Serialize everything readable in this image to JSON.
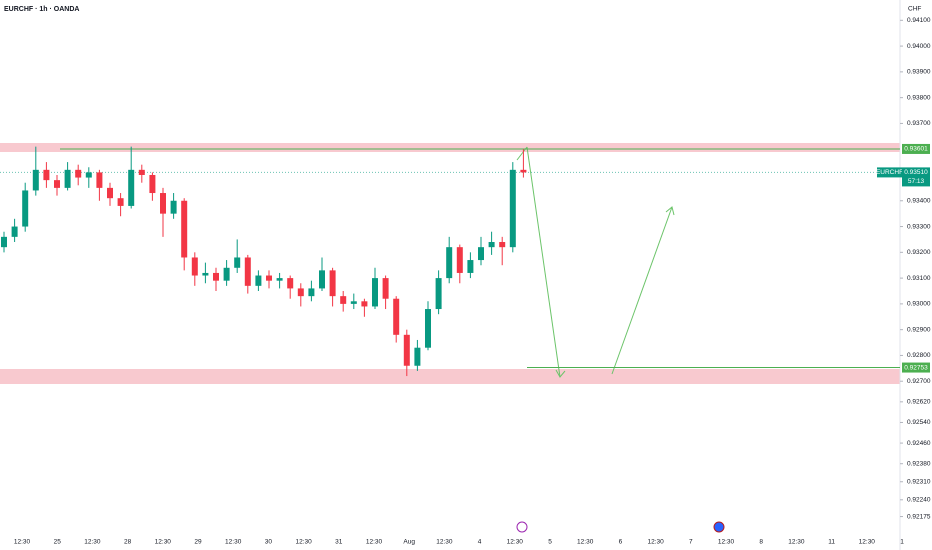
{
  "chart_data": {
    "type": "candlestick",
    "title": "EURCHF · 1h · OANDA",
    "currency": "CHF",
    "categories": [
      "12:30",
      "25",
      "12:30",
      "28",
      "12:30",
      "29",
      "12:30",
      "30",
      "12:30",
      "31",
      "12:30",
      "Aug",
      "12:30",
      "4",
      "12:30",
      "5",
      "12:30",
      "6",
      "12:30",
      "7",
      "12:30",
      "8",
      "12:30",
      "11",
      "12:30",
      "1"
    ],
    "candles": [
      [
        0.9322,
        0.9328,
        0.932,
        0.9326
      ],
      [
        0.9326,
        0.9333,
        0.9324,
        0.933
      ],
      [
        0.933,
        0.9347,
        0.9328,
        0.9344
      ],
      [
        0.9344,
        0.9361,
        0.9342,
        0.9352
      ],
      [
        0.9352,
        0.9355,
        0.9345,
        0.9348
      ],
      [
        0.9348,
        0.935,
        0.9342,
        0.9345
      ],
      [
        0.9345,
        0.9355,
        0.9344,
        0.9352
      ],
      [
        0.9352,
        0.9354,
        0.9346,
        0.9349
      ],
      [
        0.9349,
        0.9353,
        0.9345,
        0.9351
      ],
      [
        0.9351,
        0.9352,
        0.934,
        0.9345
      ],
      [
        0.9345,
        0.9347,
        0.9338,
        0.9341
      ],
      [
        0.9341,
        0.9343,
        0.9334,
        0.9338
      ],
      [
        0.9338,
        0.9361,
        0.9337,
        0.9352
      ],
      [
        0.9352,
        0.9354,
        0.9347,
        0.935
      ],
      [
        0.935,
        0.9351,
        0.934,
        0.9343
      ],
      [
        0.9343,
        0.9345,
        0.9326,
        0.9335
      ],
      [
        0.9335,
        0.9343,
        0.9333,
        0.934
      ],
      [
        0.934,
        0.9341,
        0.9313,
        0.9318
      ],
      [
        0.9318,
        0.932,
        0.9307,
        0.9311
      ],
      [
        0.9311,
        0.9316,
        0.9308,
        0.9312
      ],
      [
        0.9312,
        0.9314,
        0.9305,
        0.9309
      ],
      [
        0.9309,
        0.9317,
        0.9307,
        0.9314
      ],
      [
        0.9314,
        0.9325,
        0.9312,
        0.9318
      ],
      [
        0.9318,
        0.9319,
        0.9304,
        0.9307
      ],
      [
        0.9307,
        0.9313,
        0.9305,
        0.9311
      ],
      [
        0.9311,
        0.9313,
        0.9306,
        0.9309
      ],
      [
        0.9309,
        0.9312,
        0.9306,
        0.931
      ],
      [
        0.931,
        0.9311,
        0.9302,
        0.9306
      ],
      [
        0.9306,
        0.9308,
        0.9299,
        0.9303
      ],
      [
        0.9303,
        0.9309,
        0.9301,
        0.9306
      ],
      [
        0.9306,
        0.9318,
        0.9305,
        0.9313
      ],
      [
        0.9313,
        0.9314,
        0.9299,
        0.9303
      ],
      [
        0.9303,
        0.9305,
        0.9297,
        0.93
      ],
      [
        0.93,
        0.9304,
        0.9298,
        0.9301
      ],
      [
        0.9301,
        0.9302,
        0.9295,
        0.9299
      ],
      [
        0.9299,
        0.9314,
        0.9298,
        0.931
      ],
      [
        0.931,
        0.9311,
        0.9298,
        0.9302
      ],
      [
        0.9302,
        0.9303,
        0.9285,
        0.9288
      ],
      [
        0.9288,
        0.929,
        0.9272,
        0.9276
      ],
      [
        0.9276,
        0.9286,
        0.9274,
        0.9283
      ],
      [
        0.9283,
        0.9301,
        0.9282,
        0.9298
      ],
      [
        0.9298,
        0.9313,
        0.9296,
        0.931
      ],
      [
        0.931,
        0.9326,
        0.9308,
        0.9322
      ],
      [
        0.9322,
        0.9323,
        0.9308,
        0.9312
      ],
      [
        0.9312,
        0.932,
        0.931,
        0.9317
      ],
      [
        0.9317,
        0.9326,
        0.9315,
        0.9322
      ],
      [
        0.9322,
        0.9328,
        0.9319,
        0.9324
      ],
      [
        0.9324,
        0.9326,
        0.9315,
        0.9322
      ],
      [
        0.9322,
        0.9355,
        0.932,
        0.9352
      ],
      [
        0.9352,
        0.936,
        0.9349,
        0.9351
      ]
    ],
    "up_color": "#089981",
    "down_color": "#f23645",
    "ylim": [
      0.9215,
      0.9414
    ],
    "yticks": [
      {
        "value": 0.941,
        "label": "0.94100"
      },
      {
        "value": 0.94,
        "label": "0.94000"
      },
      {
        "value": 0.939,
        "label": "0.93900"
      },
      {
        "value": 0.938,
        "label": "0.93800"
      },
      {
        "value": 0.937,
        "label": "0.93700"
      },
      {
        "value": 0.934,
        "label": "0.93400"
      },
      {
        "value": 0.933,
        "label": "0.93300"
      },
      {
        "value": 0.932,
        "label": "0.93200"
      },
      {
        "value": 0.931,
        "label": "0.93100"
      },
      {
        "value": 0.93,
        "label": "0.93000"
      },
      {
        "value": 0.929,
        "label": "0.92900"
      },
      {
        "value": 0.928,
        "label": "0.92800"
      },
      {
        "value": 0.927,
        "label": "0.92700"
      },
      {
        "value": 0.9262,
        "label": "0.92620"
      },
      {
        "value": 0.9254,
        "label": "0.92540"
      },
      {
        "value": 0.9246,
        "label": "0.92460"
      },
      {
        "value": 0.9238,
        "label": "0.92380"
      },
      {
        "value": 0.9231,
        "label": "0.92310"
      },
      {
        "value": 0.9224,
        "label": "0.92240"
      },
      {
        "value": 0.92175,
        "label": "0.92175"
      }
    ],
    "resistance": {
      "value": 0.93601,
      "label": "0.93601"
    },
    "support": {
      "value": 0.92753,
      "label": "0.92753"
    },
    "last_price": {
      "symbol": "EURCHF",
      "value": 0.9351,
      "label": "0.93510",
      "countdown": "57:13"
    }
  }
}
